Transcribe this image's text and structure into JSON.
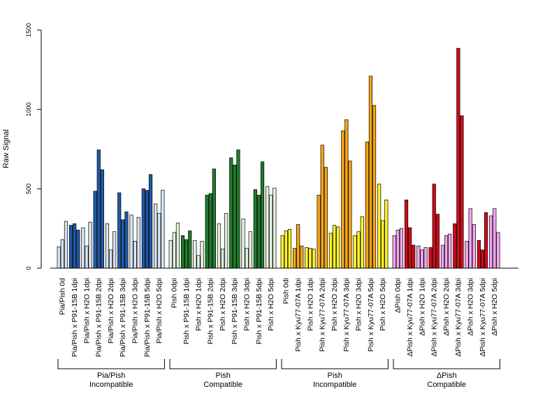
{
  "chart_data": {
    "type": "bar",
    "ylabel": "Raw Signal",
    "ylim": [
      0,
      1500
    ],
    "yticks": [
      "0",
      "500",
      "1000",
      "1500"
    ],
    "grid": false,
    "legend": "none",
    "groups": [
      {
        "label_line1": "Pia/Pish",
        "label_line2": "Incompatible",
        "color_dark": "#1f5aa6",
        "color_light": "#d6e3f0",
        "categories": [
          "Pia/Pish 0d",
          "Pia/Pish x P91-15B 1dpi",
          "Pia/Pish x H2O 1dpi",
          "Pia/Pish x P91-15B 2dpi",
          "Pia/Pish x H2O 2dpi",
          "Pia/Pish x P91-15B 3dpi",
          "Pia/Pish x H2O 3dpi",
          "Pia/Pish x P91-15B 5dpi",
          "Pia/Pish x H2O 5dpi"
        ],
        "dark": [
          false,
          true,
          false,
          true,
          false,
          true,
          false,
          true,
          false
        ]
      },
      {
        "label_line1": "Pish",
        "label_line2": "Compatible",
        "color_dark": "#217a2c",
        "color_light": "#e3f0df",
        "categories": [
          "Pish 0dpi",
          "Pish x P91-15B 1dpi",
          "Pish x H2O 1dpi",
          "Pish x P91-15B 2dpi",
          "Pish x H2O 2dpi",
          "Pish x P91-15B 3dpi",
          "Pish x H2O 3dpi",
          "Pish x P91-15B 5dpi",
          "Pish x H2O 5dpi"
        ],
        "dark": [
          false,
          true,
          false,
          true,
          false,
          true,
          false,
          true,
          false
        ]
      },
      {
        "label_line1": "Pish",
        "label_line2": "Incompatible",
        "color_dark": "#f5a516",
        "color_light": "#fdf227",
        "categories": [
          "Pish 0di",
          "Pish x Kyu77-07A 1dpi",
          "Pish x H2O 1dpi",
          "Pish x Kyu77-07A 2dpi",
          "Pish x H2O 2dpi",
          "Pish x Kyu77-07A 3dpi",
          "Pish x H2O 3dpi",
          "Pish x Kyu77-07A 5dpi",
          "Pish x H2O 5dpi"
        ],
        "dark": [
          false,
          true,
          false,
          true,
          false,
          true,
          false,
          true,
          false
        ]
      },
      {
        "label_line1": "ΔPish",
        "label_line2": "Compatible",
        "color_dark": "#d10a1a",
        "color_light": "#f2a6ee",
        "categories": [
          "ΔPish 0dpi",
          "ΔPish x Kyu77-07A 1dpi",
          "ΔPish x H2O 1dpi",
          "ΔPish x Kyu77-07A 2dpi",
          "ΔPish x H2O 2dpi",
          "ΔPish x Kyu77-07A 3dpi",
          "ΔPish x H2O 3dpi",
          "ΔPish x Kyu77-07A 5dpi",
          "ΔPish x H2O 5dpi"
        ],
        "dark": [
          false,
          true,
          false,
          true,
          false,
          true,
          false,
          true,
          false
        ]
      }
    ],
    "values": [
      [
        [
          135,
          180,
          295
        ],
        [
          270,
          280,
          240
        ],
        [
          255,
          140,
          290
        ],
        [
          485,
          745,
          620
        ],
        [
          280,
          115,
          230
        ],
        [
          475,
          305,
          355
        ],
        [
          335,
          170,
          320
        ],
        [
          500,
          490,
          590
        ],
        [
          405,
          345,
          490
        ]
      ],
      [
        [
          175,
          225,
          285
        ],
        [
          205,
          180,
          235
        ],
        [
          175,
          80,
          170
        ],
        [
          460,
          470,
          625
        ],
        [
          280,
          120,
          345
        ],
        [
          695,
          650,
          745
        ],
        [
          310,
          125,
          230
        ],
        [
          495,
          460,
          670
        ],
        [
          515,
          460,
          505
        ]
      ],
      [
        [
          205,
          235,
          245
        ],
        [
          125,
          275,
          140
        ],
        [
          130,
          125,
          120
        ],
        [
          460,
          775,
          635
        ],
        [
          220,
          270,
          260
        ],
        [
          865,
          935,
          675
        ],
        [
          205,
          230,
          325
        ],
        [
          795,
          1210,
          1025
        ],
        [
          530,
          300,
          430
        ]
      ],
      [
        [
          205,
          240,
          250
        ],
        [
          430,
          255,
          145
        ],
        [
          140,
          115,
          130
        ],
        [
          130,
          530,
          340
        ],
        [
          145,
          205,
          215
        ],
        [
          280,
          1385,
          960
        ],
        [
          170,
          375,
          275
        ],
        [
          175,
          115,
          350
        ],
        [
          330,
          375,
          225
        ]
      ]
    ]
  }
}
